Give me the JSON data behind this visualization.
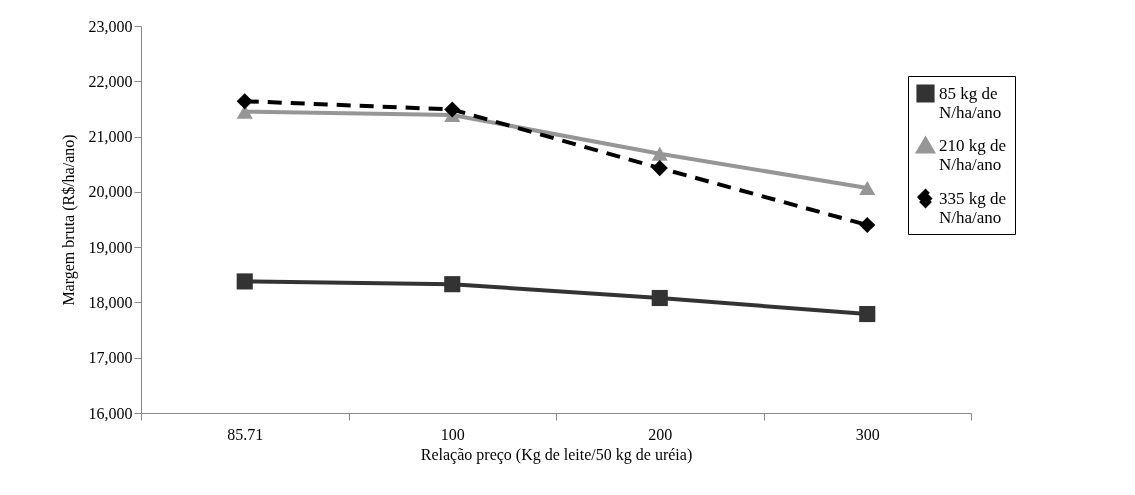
{
  "chart_data": {
    "type": "line",
    "xlabel": "Relação preço (Kg de leite/50 kg de uréia)",
    "ylabel": "Margem bruta (R$/ha/ano)",
    "categories": [
      "85.71",
      "100",
      "200",
      "300"
    ],
    "series": [
      {
        "name": "85 kg de N/ha/ano",
        "color": "#333333",
        "marker": "square",
        "line_style": "solid",
        "values": [
          18380,
          18330,
          18080,
          17790
        ]
      },
      {
        "name": "210 kg de N/ha/ano",
        "color": "#969696",
        "marker": "triangle",
        "line_style": "solid",
        "values": [
          21450,
          21390,
          20690,
          20070
        ]
      },
      {
        "name": "335 kg de N/ha/ano",
        "color": "#000000",
        "marker": "diamond",
        "line_style": "dashed",
        "values": [
          21640,
          21490,
          20430,
          19400
        ]
      }
    ],
    "ylim": [
      16000,
      23000
    ],
    "yticks": [
      {
        "value": 16000,
        "label": "16,000"
      },
      {
        "value": 17000,
        "label": "17,000"
      },
      {
        "value": 18000,
        "label": "18,000"
      },
      {
        "value": 19000,
        "label": "19,000"
      },
      {
        "value": 20000,
        "label": "20,000"
      },
      {
        "value": 21000,
        "label": "21,000"
      },
      {
        "value": 22000,
        "label": "22,000"
      },
      {
        "value": 23000,
        "label": "23,000"
      }
    ],
    "grid": false,
    "legend": "right"
  }
}
